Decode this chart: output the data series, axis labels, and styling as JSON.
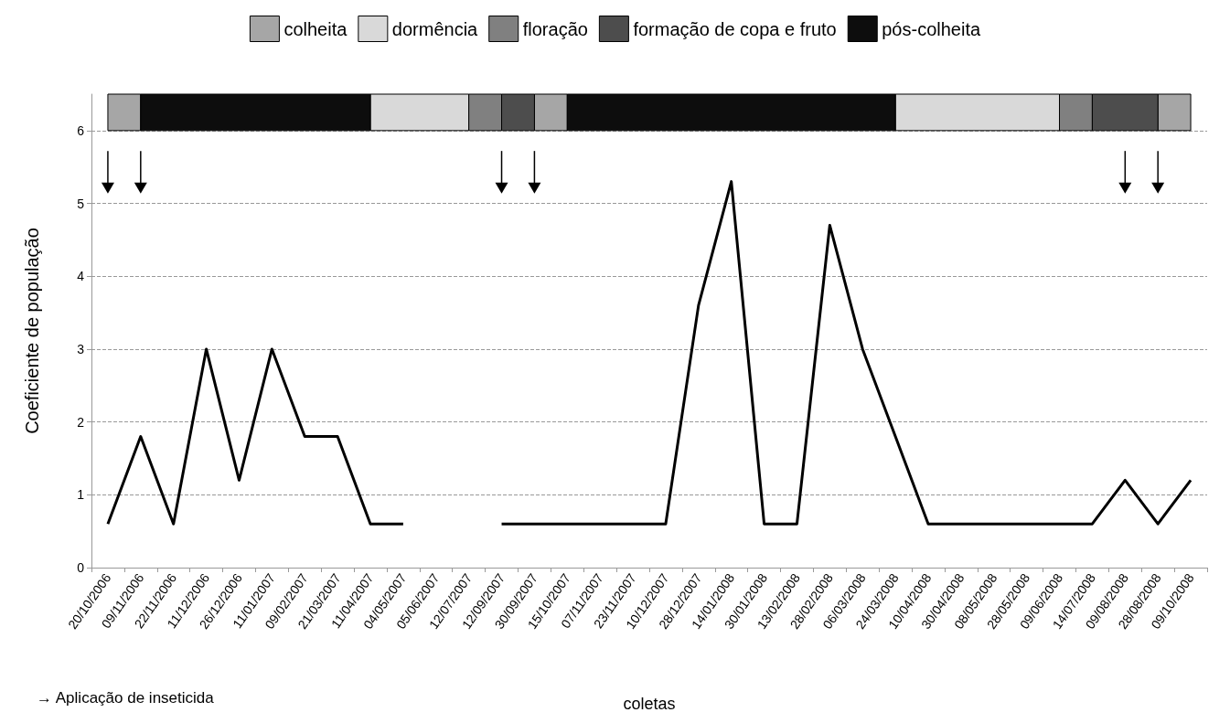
{
  "chart_data": {
    "type": "line",
    "xlabel": "coletas",
    "ylabel": "Coeficiente de população",
    "categories": [
      "20/10/2006",
      "09/11/2006",
      "22/11/2006",
      "11/12/2006",
      "26/12/2006",
      "11/01/2007",
      "09/02/2007",
      "21/03/2007",
      "11/04/2007",
      "04/05/2007",
      "05/06/2007",
      "12/07/2007",
      "12/09/2007",
      "30/09/2007",
      "15/10/2007",
      "07/11/2007",
      "23/11/2007",
      "10/12/2007",
      "28/12/2007",
      "14/01/2008",
      "30/01/2008",
      "13/02/2008",
      "28/02/2008",
      "06/03/2008",
      "24/03/2008",
      "10/04/2008",
      "30/04/2008",
      "08/05/2008",
      "28/05/2008",
      "09/06/2008",
      "14/07/2008",
      "09/08/2008",
      "28/08/2008",
      "09/10/2008"
    ],
    "series": [
      {
        "color": "#000000",
        "values": [
          0.6,
          1.8,
          0.6,
          3.0,
          1.2,
          3.0,
          1.8,
          1.8,
          0.6,
          0.6,
          null,
          null,
          0.6,
          0.6,
          0.6,
          0.6,
          0.6,
          0.6,
          3.6,
          5.3,
          0.6,
          0.6,
          4.7,
          3.0,
          1.8,
          0.6,
          0.6,
          0.6,
          0.6,
          0.6,
          0.6,
          1.2,
          0.6,
          1.2
        ]
      }
    ],
    "ylim": [
      0,
      6.5
    ],
    "yticks": [
      0,
      1,
      2,
      3,
      4,
      5,
      6
    ],
    "grid": "y",
    "line_style": "solid",
    "marker": "none",
    "legend": "top",
    "bands": [
      {
        "axis": "x",
        "from": "20/10/2006",
        "to": "09/11/2006",
        "label": "colheita",
        "color": "#a6a6a6"
      },
      {
        "axis": "x",
        "from": "11/04/2007",
        "to": "12/07/2007",
        "label": "dormência",
        "color": "#d9d9d9"
      },
      {
        "axis": "x",
        "from": "12/07/2007",
        "to": "12/09/2007",
        "label": "floração",
        "color": "#808080"
      },
      {
        "axis": "x",
        "from": "12/09/2007",
        "to": "30/09/2007",
        "label": "formação de copa e fruto",
        "color": "#4d4d4d"
      },
      {
        "axis": "x",
        "from": "09/11/2006",
        "to": "11/04/2007",
        "label": "pós-colheita",
        "color": "#0d0d0d"
      },
      {
        "axis": "x",
        "from": "30/09/2007",
        "to": "15/10/2007",
        "color": "#a6a6a6"
      },
      {
        "axis": "x",
        "from": "15/10/2007",
        "to": "24/03/2008",
        "color": "#0d0d0d"
      },
      {
        "axis": "x",
        "from": "24/03/2008",
        "to": "09/06/2008",
        "color": "#d9d9d9"
      },
      {
        "axis": "x",
        "from": "09/06/2008",
        "to": "14/07/2008",
        "color": "#808080"
      },
      {
        "axis": "x",
        "from": "14/07/2008",
        "to": "28/08/2008",
        "color": "#4d4d4d"
      },
      {
        "axis": "x",
        "from": "28/08/2008",
        "to": "09/10/2008",
        "color": "#a6a6a6"
      }
    ],
    "annotations": [
      "→ Aplicação de inseticida"
    ]
  }
}
